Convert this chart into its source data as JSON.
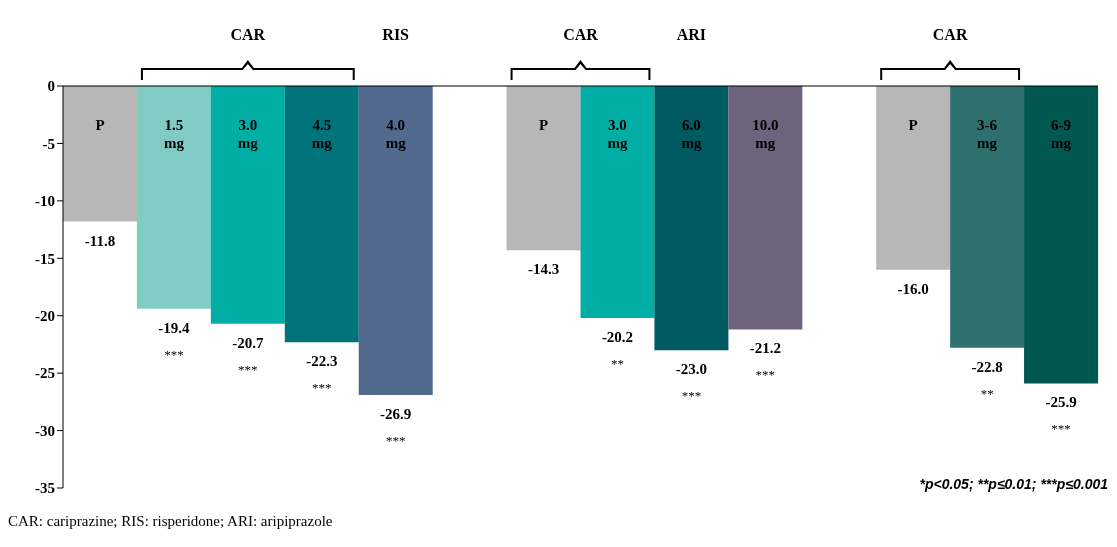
{
  "chart_data": {
    "type": "bar",
    "categories": [
      "P",
      "1.5 mg",
      "3.0 mg",
      "4.5 mg",
      "4.0 mg",
      null,
      "P",
      "3.0 mg",
      "6.0 mg",
      "10.0 mg",
      null,
      "P",
      "3-6 mg",
      "6-9 mg"
    ],
    "values": [
      -11.8,
      -19.4,
      -20.7,
      -22.3,
      -26.9,
      null,
      -14.3,
      -20.2,
      -23.0,
      -21.2,
      null,
      -16.0,
      -22.8,
      -25.9
    ],
    "colors": [
      "#b7b7b7",
      "#80cbc4",
      "#00aea6",
      "#00747a",
      "#536a8f",
      null,
      "#b7b7b7",
      "#00aea6",
      "#005a61",
      "#6e627c",
      null,
      "#b7b7b7",
      "#2e706e",
      "#005850"
    ],
    "value_labels": [
      "-11.8",
      "-19.4\n***",
      "-20.7\n***",
      "-22.3\n***",
      "-26.9\n***",
      null,
      "-14.3",
      "-20.2\n**",
      "-23.0\n***",
      "-21.2\n***",
      null,
      "-16.0",
      "-22.8\n**",
      "-25.9\n***"
    ],
    "ylim": [
      -35,
      0
    ],
    "yticks": [
      0,
      -5,
      -10,
      -15,
      -20,
      -25,
      -30,
      -35
    ],
    "grid": false,
    "annotations": [
      "CAR",
      "RIS",
      "CAR",
      "ARI",
      "CAR",
      "*p<0.05; **p≤0.01; ***p≤0.001",
      "CAR: cariprazine; RIS: risperidone; ARI: aripiprazole"
    ]
  }
}
